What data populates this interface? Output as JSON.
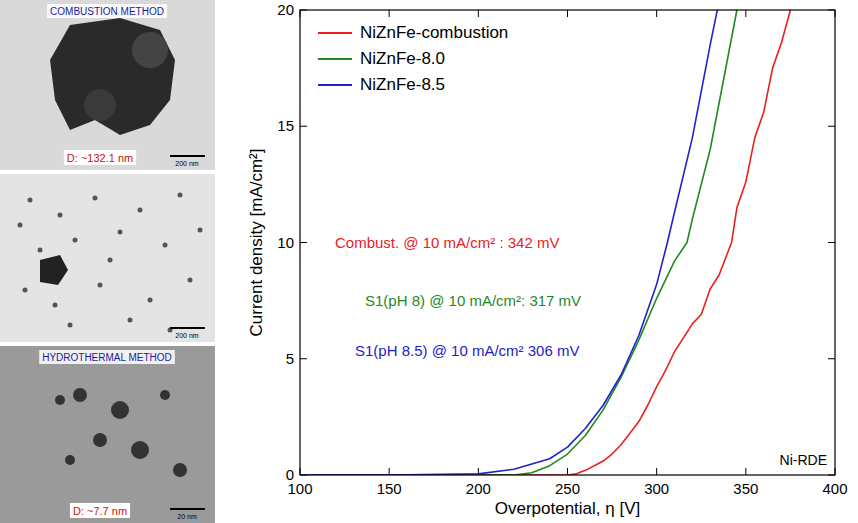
{
  "chart_data": {
    "type": "line",
    "x_label": "Overpotential, η [V]",
    "y_label": "Current density [mA/cm²]",
    "xlim": [
      100,
      400
    ],
    "ylim": [
      0,
      20
    ],
    "xticks": [
      100,
      150,
      200,
      250,
      300,
      350,
      400
    ],
    "yticks": [
      0,
      5,
      10,
      15,
      20
    ],
    "legend": "upper left",
    "series": [
      {
        "name": "NiZnFe-combustion",
        "color": "#e8211f",
        "x": [
          100,
          200,
          250,
          255,
          260,
          265,
          270,
          275,
          280,
          285,
          290,
          295,
          300,
          305,
          310,
          315,
          320,
          325,
          330,
          335,
          340,
          342,
          345,
          350,
          355,
          360,
          365,
          370,
          375
        ],
        "values": [
          0,
          0,
          0,
          0.05,
          0.2,
          0.4,
          0.6,
          0.9,
          1.3,
          1.8,
          2.3,
          3.0,
          3.8,
          4.5,
          5.3,
          5.9,
          6.5,
          6.9,
          8.0,
          8.6,
          9.6,
          10,
          11.5,
          12.6,
          14.5,
          15.6,
          17.5,
          18.6,
          20
        ]
      },
      {
        "name": "NiZnFe-8.0",
        "color": "#1f8a1f",
        "x": [
          100,
          200,
          220,
          230,
          240,
          250,
          260,
          270,
          280,
          290,
          300,
          310,
          317,
          320,
          330,
          340,
          345
        ],
        "values": [
          0,
          0,
          0,
          0.1,
          0.4,
          0.9,
          1.7,
          2.8,
          4.2,
          5.8,
          7.6,
          9.2,
          10,
          11,
          14,
          18,
          20
        ]
      },
      {
        "name": "NiZnFe-8.5",
        "color": "#2222cc",
        "x": [
          100,
          150,
          200,
          220,
          240,
          250,
          260,
          270,
          280,
          290,
          300,
          306,
          310,
          320,
          330,
          334
        ],
        "values": [
          0,
          0,
          0.05,
          0.25,
          0.7,
          1.2,
          2.0,
          3.0,
          4.3,
          6.0,
          8.2,
          10,
          11.3,
          14.5,
          18.5,
          20
        ]
      }
    ],
    "annotations": [
      {
        "text": "Combust.  @ 10 mA/cm² : 342 mV",
        "color": "#e8211f"
      },
      {
        "text": "S1(pH 8) @ 10 mA/cm²: 317 mV",
        "color": "#1f8a1f"
      },
      {
        "text": "S1(pH 8.5) @ 10 mA/cm² 306 mV",
        "color": "#2222cc"
      },
      {
        "text": "Ni-RDE",
        "color": "#000000"
      }
    ]
  },
  "images": [
    {
      "title": "COMBUSTION METHOD",
      "label": "D: ~132.1 nm",
      "scale": "200 nm"
    },
    {
      "scale": "200 nm"
    },
    {
      "title": "HYDROTHERMAL METHOD",
      "label": "D: ~7.7 nm",
      "scale": "20 nm"
    }
  ]
}
